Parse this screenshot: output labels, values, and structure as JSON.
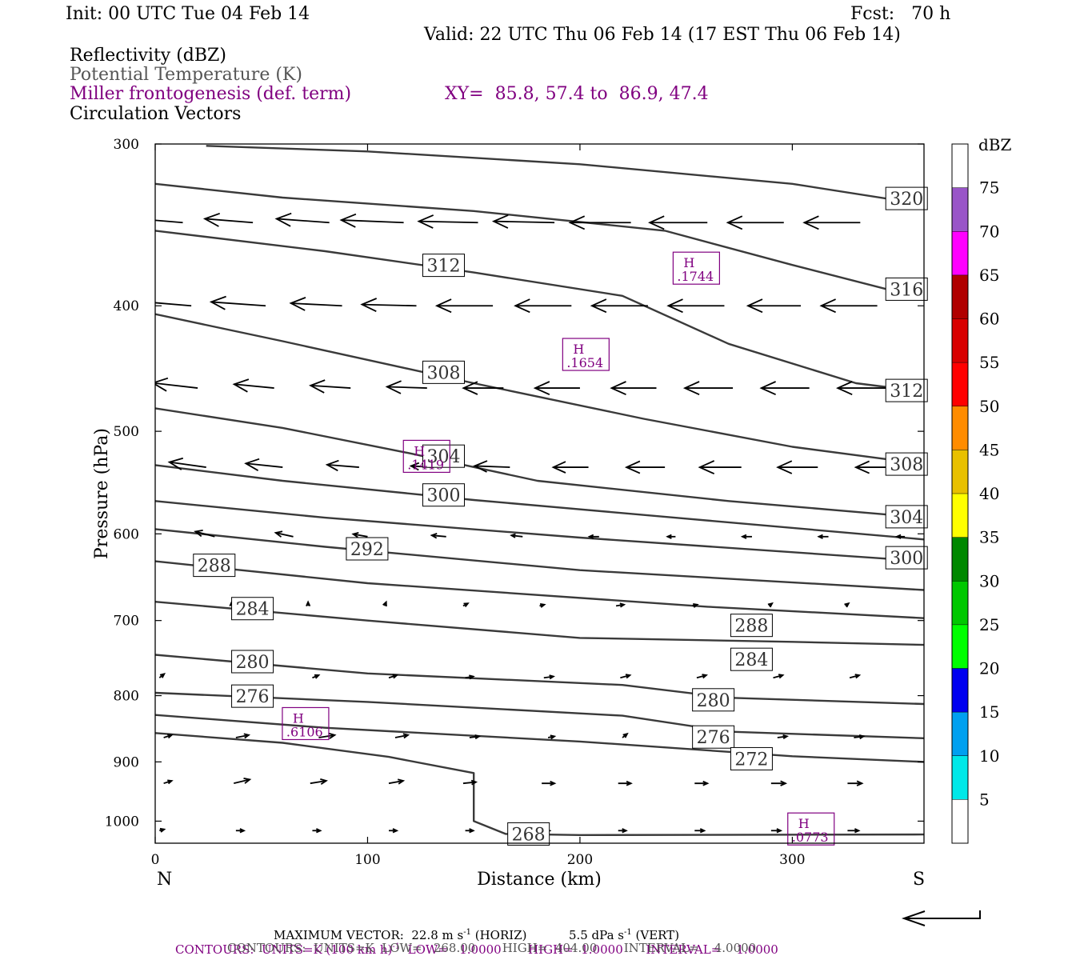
{
  "header": {
    "init": "Init: 00 UTC Tue 04 Feb 14",
    "fcst": "Fcst:   70 h",
    "valid": "Valid: 22 UTC Thu 06 Feb 14 (17 EST Thu 06 Feb 14)",
    "field1": "Reflectivity (dBZ)",
    "field2": "Potential Temperature (K)",
    "field3": "Miller frontogenesis (def. term)",
    "xy": "XY=  85.8, 57.4 to  86.9, 47.4",
    "field4": "Circulation Vectors"
  },
  "footer": {
    "max_vector": "MAXIMUM VECTOR:  22.8 m s",
    "max_vector_sup": "-1",
    "max_vector_horiz": " (HORIZ)",
    "max_vector_vert": "5.5 dPa s",
    "max_vector_vert_sup": "-1",
    "max_vector_vert_end": " (VERT)",
    "contours_purple_a": "CONTOURS:  UNITS=K (100 km h)",
    "contours_purple_sup": "-1",
    "contours_purple_b": "  LOW=   1.0000       HIGH=  1.0000      INTERVAL=    1.0000",
    "contours_black": "CONTOURS:  UNITS=K  LOW=   268.00       HIGH=  404.00       INTERVAL=    4.0000"
  },
  "colors": {
    "theta": "#3a3a3a",
    "frontogenesis": "#800080",
    "dbz_scale": [
      "#00e8e8",
      "#00a0f0",
      "#0000f0",
      "#00ff00",
      "#00c800",
      "#008800",
      "#ffff00",
      "#e8c000",
      "#ff8c00",
      "#ff0000",
      "#d80000",
      "#b00000",
      "#ff00ff",
      "#9955c8"
    ]
  },
  "chart_data": {
    "type": "line",
    "title": "",
    "xlabel": "Distance (km)",
    "ylabel": "Pressure (hPa)",
    "xlim": [
      0,
      362
    ],
    "ylim": [
      1040,
      300
    ],
    "y_scale": "log",
    "x_ticks": [
      0,
      100,
      200,
      300
    ],
    "y_ticks": [
      300,
      400,
      500,
      600,
      700,
      800,
      900,
      1000
    ],
    "x_end_labels": {
      "left": "N",
      "right": "S"
    },
    "colorbar": {
      "unit": "dBZ",
      "levels": [
        "5",
        "10",
        "15",
        "20",
        "25",
        "30",
        "35",
        "40",
        "45",
        "50",
        "55",
        "60",
        "65",
        "70",
        "75"
      ]
    },
    "theta_contours": [
      {
        "value": 320,
        "label": "320",
        "label_x": 344,
        "points": [
          [
            24,
            301
          ],
          [
            100,
            304
          ],
          [
            200,
            311
          ],
          [
            300,
            322
          ],
          [
            362,
            334
          ]
        ]
      },
      {
        "value": 316,
        "label": "316",
        "label_x": 344,
        "points": [
          [
            0,
            322
          ],
          [
            60,
            330
          ],
          [
            150,
            338
          ],
          [
            240,
            350
          ],
          [
            300,
            372
          ],
          [
            362,
            395
          ]
        ]
      },
      {
        "value": 312,
        "label": "312",
        "label_x": 126,
        "points": [
          [
            0,
            350
          ],
          [
            80,
            363
          ],
          [
            150,
            377
          ],
          [
            220,
            393
          ],
          [
            270,
            428
          ],
          [
            330,
            459
          ],
          [
            362,
            466
          ]
        ]
      },
      {
        "value": 308,
        "label": "308",
        "label_x": 126,
        "points": [
          [
            0,
            406
          ],
          [
            60,
            426
          ],
          [
            150,
            459
          ],
          [
            230,
            489
          ],
          [
            300,
            514
          ],
          [
            362,
            530
          ]
        ]
      },
      {
        "value": 304,
        "label": "304",
        "label_x": 126,
        "points": [
          [
            0,
            480
          ],
          [
            60,
            497
          ],
          [
            120,
            520
          ],
          [
            180,
            546
          ],
          [
            270,
            566
          ],
          [
            362,
            583
          ]
        ]
      },
      {
        "value": 300,
        "label": "300",
        "label_x": 126,
        "points": [
          [
            0,
            531
          ],
          [
            60,
            546
          ],
          [
            150,
            565
          ],
          [
            250,
            584
          ],
          [
            362,
            606
          ]
        ]
      },
      {
        "value": 296,
        "label": "",
        "label_x": -1,
        "points": [
          [
            0,
            566
          ],
          [
            80,
            583
          ],
          [
            200,
            604
          ],
          [
            362,
            630
          ]
        ]
      },
      {
        "value": 292,
        "label": "292",
        "label_x": 90,
        "points": [
          [
            0,
            595
          ],
          [
            80,
            614
          ],
          [
            200,
            640
          ],
          [
            362,
            663
          ]
        ]
      },
      {
        "value": 288,
        "label": "288",
        "label_x": 18,
        "points": [
          [
            0,
            630
          ],
          [
            100,
            655
          ],
          [
            260,
            683
          ],
          [
            362,
            697
          ]
        ]
      },
      {
        "value": 284,
        "label": "284",
        "label_x": 36,
        "points": [
          [
            0,
            677
          ],
          [
            100,
            700
          ],
          [
            200,
            722
          ],
          [
            300,
            727
          ],
          [
            362,
            731
          ]
        ]
      },
      {
        "value": 280,
        "label": "280",
        "label_x": 36,
        "points": [
          [
            0,
            744
          ],
          [
            100,
            769
          ],
          [
            220,
            785
          ],
          [
            270,
            803
          ],
          [
            362,
            812
          ]
        ]
      },
      {
        "value": 276,
        "label": "276",
        "label_x": 36,
        "points": [
          [
            0,
            796
          ],
          [
            100,
            809
          ],
          [
            220,
            829
          ],
          [
            270,
            853
          ],
          [
            362,
            863
          ]
        ]
      },
      {
        "value": 272,
        "label": "272",
        "label_x": -1,
        "points": [
          [
            0,
            828
          ],
          [
            80,
            847
          ],
          [
            200,
            868
          ],
          [
            300,
            891
          ],
          [
            362,
            900
          ]
        ]
      },
      {
        "value": 268,
        "label": "268",
        "label_x": 166,
        "points": [
          [
            0,
            855
          ],
          [
            60,
            870
          ],
          [
            110,
            892
          ],
          [
            150,
            918
          ],
          [
            150,
            1000
          ],
          [
            165,
            1023
          ],
          [
            200,
            1025
          ],
          [
            362,
            1024
          ]
        ]
      }
    ],
    "theta_extra_labels": [
      {
        "label": "312",
        "x": 344,
        "p": 465
      },
      {
        "label": "308",
        "x": 344,
        "p": 530
      },
      {
        "label": "304",
        "x": 344,
        "p": 582
      },
      {
        "label": "300",
        "x": 344,
        "p": 626
      },
      {
        "label": "288",
        "x": 271,
        "p": 706
      },
      {
        "label": "284",
        "x": 271,
        "p": 750
      },
      {
        "label": "280",
        "x": 253,
        "p": 806
      },
      {
        "label": "276",
        "x": 253,
        "p": 861
      },
      {
        "label": "272",
        "x": 271,
        "p": 895
      }
    ],
    "frontogenesis_maxima": [
      {
        "label": "H",
        "value": ".1744",
        "x": 245,
        "p": 380
      },
      {
        "label": "H",
        "value": ".1654",
        "x": 193,
        "p": 443
      },
      {
        "label": "H",
        "value": ".1419",
        "x": 118,
        "p": 531
      },
      {
        "label": "H",
        "value": ".6106",
        "x": 61,
        "p": 854
      },
      {
        "label": "H",
        "value": ".0773",
        "x": 299,
        "p": 1030
      }
    ],
    "circulation_vectors": [
      {
        "p": 345,
        "uv": [
          [
            13,
            -38,
            4
          ],
          [
            46,
            -30,
            3
          ],
          [
            82,
            -33,
            3
          ],
          [
            117,
            -39,
            2
          ],
          [
            152,
            -37,
            1
          ],
          [
            188,
            -38,
            1
          ],
          [
            224,
            -38,
            0
          ],
          [
            260,
            -36,
            0
          ],
          [
            296,
            -35,
            0
          ],
          [
            332,
            -35,
            0
          ]
        ]
      },
      {
        "p": 400,
        "uv": [
          [
            17,
            -38,
            4
          ],
          [
            52,
            -34,
            3
          ],
          [
            88,
            -32,
            2
          ],
          [
            123,
            -34,
            1
          ],
          [
            159,
            -35,
            0
          ],
          [
            196,
            -35,
            0
          ],
          [
            232,
            -35,
            0
          ],
          [
            268,
            -35,
            0
          ],
          [
            304,
            -33,
            0
          ],
          [
            340,
            -35,
            0
          ]
        ]
      },
      {
        "p": 463,
        "uv": [
          [
            20,
            -28,
            4
          ],
          [
            56,
            -25,
            3
          ],
          [
            92,
            -25,
            2
          ],
          [
            128,
            -25,
            1
          ],
          [
            164,
            -25,
            0
          ],
          [
            200,
            -28,
            0
          ],
          [
            236,
            -28,
            0
          ],
          [
            272,
            -30,
            0
          ],
          [
            308,
            -30,
            0
          ],
          [
            344,
            -30,
            0
          ]
        ]
      },
      {
        "p": 533,
        "uv": [
          [
            24,
            -23,
            4
          ],
          [
            60,
            -23,
            3
          ],
          [
            96,
            -20,
            2
          ],
          [
            131,
            -14,
            1
          ],
          [
            167,
            -22,
            1
          ],
          [
            204,
            -22,
            0
          ],
          [
            240,
            -24,
            0
          ],
          [
            276,
            -26,
            0
          ],
          [
            312,
            -25,
            0
          ],
          [
            348,
            -24,
            0
          ]
        ]
      },
      {
        "p": 603,
        "uv": [
          [
            28,
            -12,
            4
          ],
          [
            65,
            -11,
            3
          ],
          [
            100,
            -9,
            2
          ],
          [
            137,
            -9,
            1
          ],
          [
            173,
            -7,
            1
          ],
          [
            209,
            -6,
            0
          ],
          [
            245,
            -5,
            0
          ],
          [
            281,
            -6,
            0
          ],
          [
            317,
            -6,
            0
          ],
          [
            353,
            -5,
            0
          ]
        ]
      },
      {
        "p": 682,
        "uv": [
          [
            36,
            0,
            3
          ],
          [
            72,
            0,
            3
          ],
          [
            108,
            1,
            3
          ],
          [
            145,
            3,
            2
          ],
          [
            181,
            3,
            1
          ],
          [
            217,
            5,
            1
          ],
          [
            253,
            3,
            1
          ],
          [
            289,
            2,
            2
          ],
          [
            325,
            2,
            2
          ]
        ]
      },
      {
        "p": 775,
        "uv": [
          [
            2,
            3,
            3
          ],
          [
            74,
            4,
            2
          ],
          [
            110,
            5,
            2
          ],
          [
            146,
            5,
            1
          ],
          [
            183,
            6,
            1
          ],
          [
            219,
            6,
            2
          ],
          [
            255,
            6,
            2
          ],
          [
            291,
            6,
            2
          ],
          [
            327,
            6,
            2
          ]
        ]
      },
      {
        "p": 862,
        "uv": [
          [
            4,
            5,
            2
          ],
          [
            38,
            8,
            2
          ],
          [
            77,
            10,
            2
          ],
          [
            113,
            8,
            2
          ],
          [
            148,
            6,
            1
          ],
          [
            185,
            4,
            1
          ],
          [
            220,
            3,
            3
          ],
          [
            257,
            4,
            1
          ],
          [
            293,
            6,
            1
          ],
          [
            329,
            6,
            1
          ]
        ]
      },
      {
        "p": 935,
        "uv": [
          [
            4,
            5,
            2
          ],
          [
            37,
            10,
            3
          ],
          [
            73,
            10,
            2
          ],
          [
            110,
            9,
            2
          ],
          [
            145,
            8,
            1
          ],
          [
            182,
            8,
            0
          ],
          [
            218,
            8,
            0
          ],
          [
            254,
            8,
            0
          ],
          [
            290,
            9,
            0
          ],
          [
            326,
            9,
            0
          ]
        ]
      },
      {
        "p": 1017,
        "uv": [
          [
            2,
            3,
            1
          ],
          [
            38,
            5,
            0
          ],
          [
            74,
            5,
            0
          ],
          [
            110,
            5,
            0
          ],
          [
            146,
            5,
            0
          ],
          [
            182,
            5,
            0
          ],
          [
            218,
            5,
            0
          ],
          [
            254,
            6,
            0
          ],
          [
            290,
            6,
            0
          ],
          [
            326,
            7,
            0
          ]
        ]
      }
    ]
  }
}
